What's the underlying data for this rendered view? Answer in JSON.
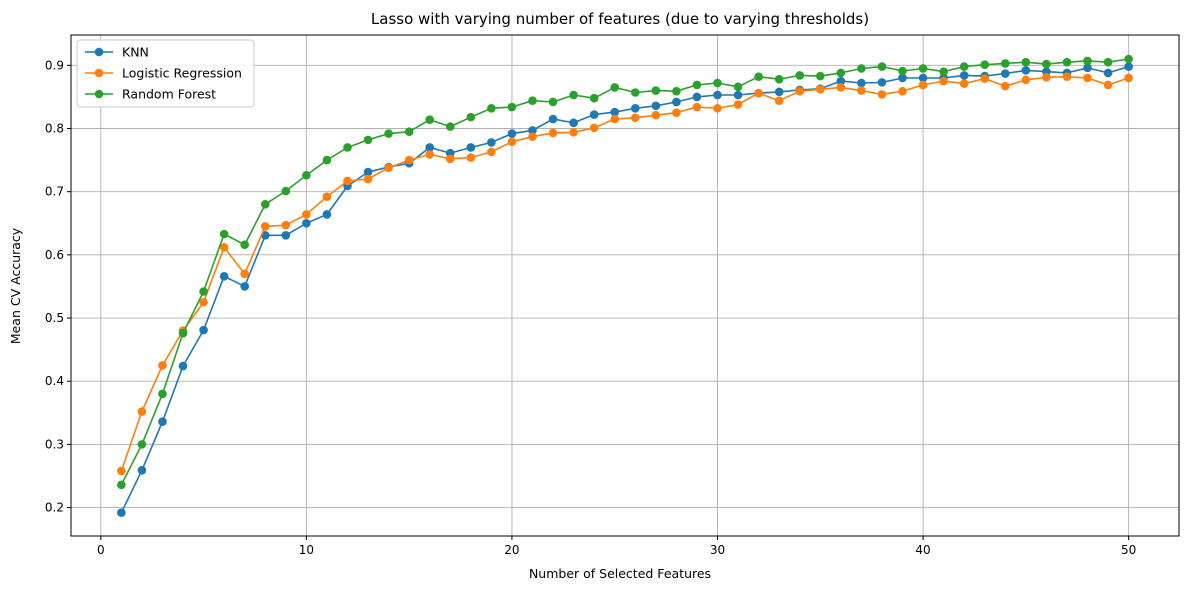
{
  "chart_data": {
    "type": "line",
    "title": "Lasso with varying number of features (due to varying thresholds)",
    "xlabel": "Number of Selected Features",
    "ylabel": "Mean CV Accuracy",
    "xlim": [
      -1.45,
      52.45
    ],
    "ylim": [
      0.155,
      0.948
    ],
    "xticks": [
      0,
      10,
      20,
      30,
      40,
      50
    ],
    "yticks": [
      0.2,
      0.3,
      0.4,
      0.5,
      0.6,
      0.7,
      0.8,
      0.9
    ],
    "grid": true,
    "legend_position": "upper-left",
    "x": [
      1,
      2,
      3,
      4,
      5,
      6,
      7,
      8,
      9,
      10,
      11,
      12,
      13,
      14,
      15,
      16,
      17,
      18,
      19,
      20,
      21,
      22,
      23,
      24,
      25,
      26,
      27,
      28,
      29,
      30,
      31,
      32,
      33,
      34,
      35,
      36,
      37,
      38,
      39,
      40,
      41,
      42,
      43,
      44,
      45,
      46,
      47,
      48,
      49,
      50
    ],
    "series": [
      {
        "name": "KNN",
        "color": "#1f77b4",
        "values": [
          0.192,
          0.259,
          0.336,
          0.424,
          0.481,
          0.566,
          0.55,
          0.631,
          0.631,
          0.65,
          0.664,
          0.709,
          0.731,
          0.739,
          0.745,
          0.77,
          0.761,
          0.77,
          0.778,
          0.792,
          0.797,
          0.815,
          0.809,
          0.822,
          0.826,
          0.832,
          0.836,
          0.842,
          0.85,
          0.853,
          0.853,
          0.856,
          0.858,
          0.861,
          0.863,
          0.875,
          0.872,
          0.873,
          0.88,
          0.88,
          0.88,
          0.884,
          0.883,
          0.887,
          0.892,
          0.89,
          0.888,
          0.896,
          0.888,
          0.898
        ]
      },
      {
        "name": "Logistic Regression",
        "color": "#ff7f0e",
        "values": [
          0.258,
          0.352,
          0.425,
          0.48,
          0.525,
          0.612,
          0.57,
          0.645,
          0.647,
          0.664,
          0.692,
          0.717,
          0.72,
          0.738,
          0.75,
          0.759,
          0.752,
          0.754,
          0.763,
          0.779,
          0.787,
          0.793,
          0.794,
          0.801,
          0.815,
          0.817,
          0.821,
          0.825,
          0.834,
          0.832,
          0.838,
          0.856,
          0.844,
          0.859,
          0.862,
          0.865,
          0.86,
          0.854,
          0.859,
          0.869,
          0.875,
          0.871,
          0.879,
          0.867,
          0.877,
          0.881,
          0.882,
          0.88,
          0.869,
          0.88
        ]
      },
      {
        "name": "Random Forest",
        "color": "#2ca02c",
        "values": [
          0.236,
          0.3,
          0.38,
          0.476,
          0.542,
          0.633,
          0.616,
          0.68,
          0.701,
          0.726,
          0.75,
          0.77,
          0.782,
          0.792,
          0.795,
          0.814,
          0.803,
          0.818,
          0.832,
          0.834,
          0.844,
          0.842,
          0.853,
          0.848,
          0.865,
          0.857,
          0.86,
          0.859,
          0.869,
          0.872,
          0.866,
          0.882,
          0.878,
          0.884,
          0.883,
          0.888,
          0.895,
          0.898,
          0.891,
          0.895,
          0.89,
          0.898,
          0.901,
          0.903,
          0.905,
          0.902,
          0.905,
          0.907,
          0.905,
          0.91
        ]
      }
    ]
  }
}
